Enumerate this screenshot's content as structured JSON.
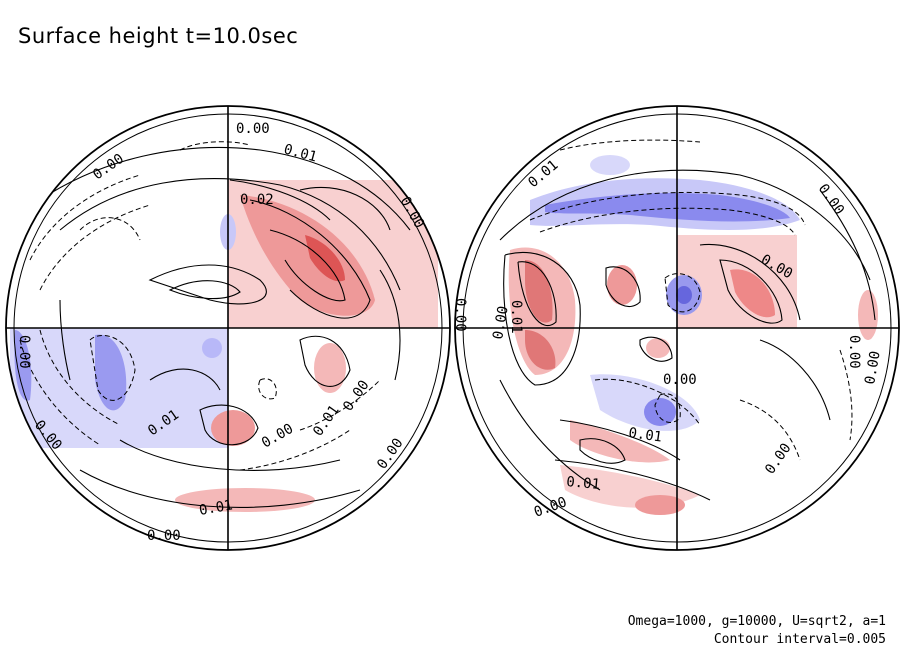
{
  "title": "Surface height t=10.0sec",
  "footer": {
    "params": "Omega=1000, g=10000, U=sqrt2, a=1",
    "interval": "Contour interval=0.005"
  },
  "colors": {
    "positive": "#ee7777",
    "positive_light": "#f8d0d0",
    "negative": "#7777ee",
    "negative_light": "#d0d0f8",
    "line": "#000000"
  },
  "left_hemisphere": {
    "labels": [
      {
        "text": "0.00"
      },
      {
        "text": "0.01"
      },
      {
        "text": "0.00"
      },
      {
        "text": "0.02"
      },
      {
        "text": "0.00"
      },
      {
        "text": "0.00"
      },
      {
        "text": "0.00"
      },
      {
        "text": "0.01"
      },
      {
        "text": "0.00"
      },
      {
        "text": "0.01"
      },
      {
        "text": "0.00"
      },
      {
        "text": "0.00"
      },
      {
        "text": "0.01"
      },
      {
        "text": "0.00"
      },
      {
        "text": "0.00"
      }
    ]
  },
  "right_hemisphere": {
    "labels": [
      {
        "text": "0.01"
      },
      {
        "text": "0.00"
      },
      {
        "text": "0.00"
      },
      {
        "text": "0.00"
      },
      {
        "text": "0.00"
      },
      {
        "text": "0.01"
      },
      {
        "text": "0.00"
      },
      {
        "text": "0.01"
      },
      {
        "text": "0.00"
      },
      {
        "text": "0.00"
      },
      {
        "text": "0.00"
      },
      {
        "text": "0.01"
      }
    ]
  }
}
